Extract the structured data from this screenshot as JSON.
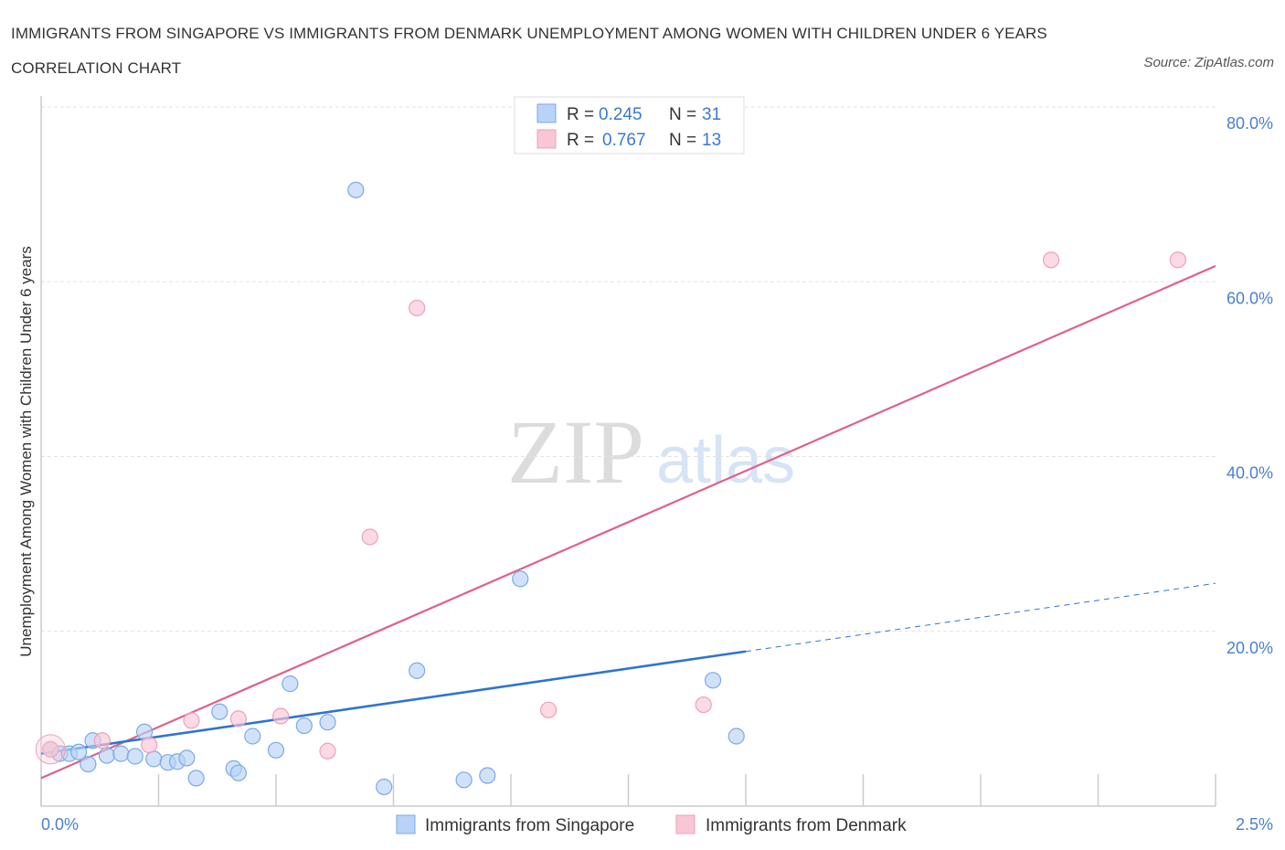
{
  "title": "IMMIGRANTS FROM SINGAPORE VS IMMIGRANTS FROM DENMARK UNEMPLOYMENT AMONG WOMEN WITH CHILDREN UNDER 6 YEARS CORRELATION CHART",
  "source": "Source: ZipAtlas.com",
  "watermark": {
    "zip": "ZIP",
    "atlas": "atlas"
  },
  "colors": {
    "singapore_fill": "#b8d3f5",
    "singapore_stroke": "#7aaae6",
    "singapore_line": "#2f74d0",
    "denmark_fill": "#f9c6d5",
    "denmark_stroke": "#eea0b8",
    "denmark_line": "#e0608c",
    "grid": "#e3e3e3",
    "tick_label": "#4a7fd0"
  },
  "legend": {
    "rows": [
      {
        "r_label": "R =",
        "r_value": "0.245",
        "n_label": "N =",
        "n_value": "31"
      },
      {
        "r_label": "R =",
        "r_value": "0.767",
        "n_label": "N =",
        "n_value": "13"
      }
    ]
  },
  "chart_data": {
    "type": "scatter",
    "title": "IMMIGRANTS FROM SINGAPORE VS IMMIGRANTS FROM DENMARK UNEMPLOYMENT AMONG WOMEN WITH CHILDREN UNDER 6 YEARS CORRELATION CHART",
    "xlabel": "",
    "ylabel": "Unemployment Among Women with Children Under 6 years",
    "xlim": [
      0,
      2.5
    ],
    "ylim": [
      0,
      80
    ],
    "x_tick_labels": [
      "0.0%",
      "2.5%"
    ],
    "y_ticks": [
      20,
      40,
      60,
      80
    ],
    "y_tick_labels": [
      "20.0%",
      "40.0%",
      "60.0%",
      "80.0%"
    ],
    "grid": true,
    "legend_position": "top-center",
    "series": [
      {
        "name": "Immigrants from Singapore",
        "r": 0.245,
        "n": 31,
        "points": [
          [
            0.02,
            6.5
          ],
          [
            0.04,
            6.0
          ],
          [
            0.06,
            6.0
          ],
          [
            0.08,
            6.2
          ],
          [
            0.1,
            4.8
          ],
          [
            0.11,
            7.5
          ],
          [
            0.14,
            5.8
          ],
          [
            0.17,
            6.0
          ],
          [
            0.2,
            5.7
          ],
          [
            0.22,
            8.5
          ],
          [
            0.24,
            5.4
          ],
          [
            0.27,
            5.0
          ],
          [
            0.29,
            5.1
          ],
          [
            0.31,
            5.5
          ],
          [
            0.33,
            3.2
          ],
          [
            0.38,
            10.8
          ],
          [
            0.41,
            4.3
          ],
          [
            0.42,
            3.8
          ],
          [
            0.45,
            8.0
          ],
          [
            0.5,
            6.4
          ],
          [
            0.53,
            14.0
          ],
          [
            0.56,
            9.2
          ],
          [
            0.61,
            9.6
          ],
          [
            0.67,
            70.5
          ],
          [
            0.73,
            2.2
          ],
          [
            0.8,
            15.5
          ],
          [
            0.9,
            3.0
          ],
          [
            0.95,
            3.5
          ],
          [
            1.02,
            26.0
          ],
          [
            1.43,
            14.4
          ],
          [
            1.48,
            8.0
          ]
        ],
        "trend": {
          "x0": 0.0,
          "y0": 6.0,
          "x1": 1.5,
          "y1": 17.7
        },
        "trend_extension": {
          "x0": 1.5,
          "y0": 17.7,
          "x1": 2.5,
          "y1": 25.5
        }
      },
      {
        "name": "Immigrants from Denmark",
        "r": 0.767,
        "n": 13,
        "points": [
          [
            0.02,
            6.5
          ],
          [
            0.13,
            7.5
          ],
          [
            0.23,
            7.0
          ],
          [
            0.32,
            9.8
          ],
          [
            0.42,
            10.0
          ],
          [
            0.51,
            10.3
          ],
          [
            0.61,
            6.3
          ],
          [
            0.7,
            30.8
          ],
          [
            0.8,
            57.0
          ],
          [
            1.08,
            11.0
          ],
          [
            1.41,
            11.6
          ],
          [
            2.15,
            62.5
          ],
          [
            2.42,
            62.5
          ]
        ],
        "trend": {
          "x0": 0.0,
          "y0": 3.2,
          "x1": 2.5,
          "y1": 61.8
        }
      }
    ]
  }
}
